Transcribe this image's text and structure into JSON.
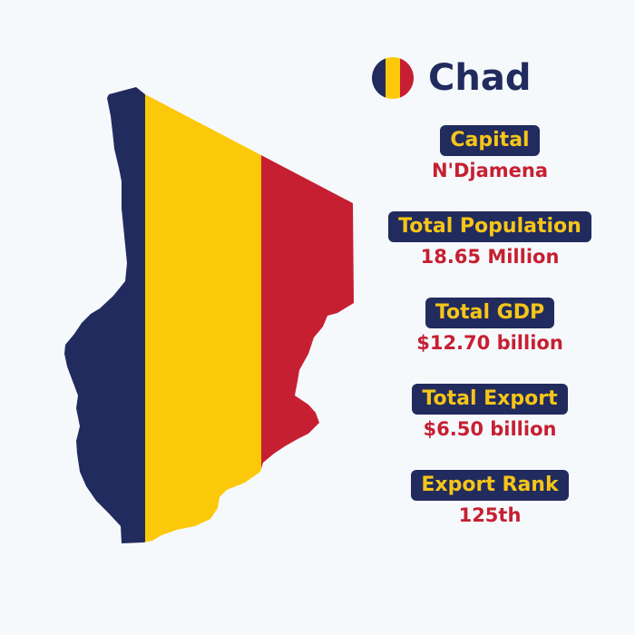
{
  "country": {
    "name": "Chad",
    "flag_colors": [
      "#222b5e",
      "#fcc90a",
      "#c71f32"
    ]
  },
  "facts": [
    {
      "label": "Capital",
      "value": "N'Djamena"
    },
    {
      "label": "Total Population",
      "value": "18.65 Million"
    },
    {
      "label": "Total GDP",
      "value": "$12.70 billion"
    },
    {
      "label": "Total Export",
      "value": "$6.50 billion"
    },
    {
      "label": "Export Rank",
      "value": "125th"
    }
  ]
}
